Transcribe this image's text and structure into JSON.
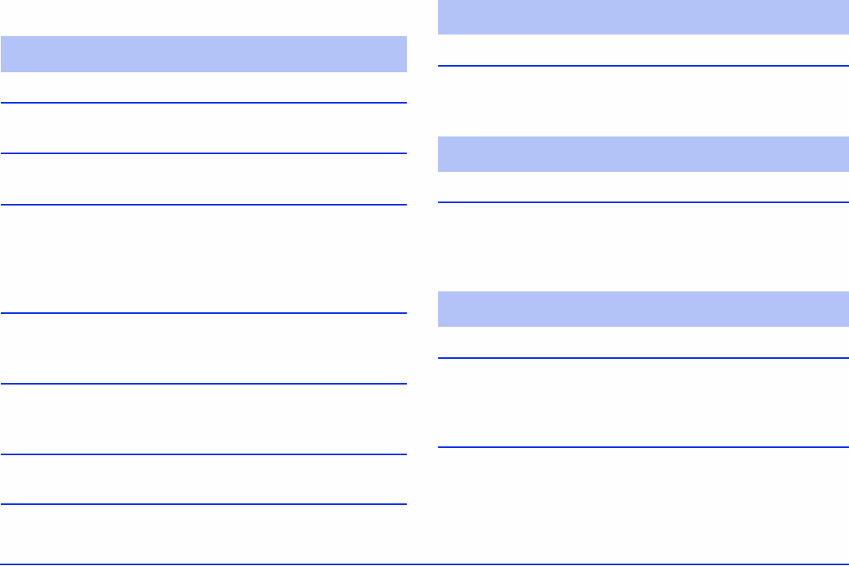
{
  "colors": {
    "table_header_fill": "#b3c3f7",
    "row_rule": "#0a32e6",
    "page_background": "#fefefe"
  },
  "left_table": {
    "header": "",
    "rows": [
      "",
      "",
      "",
      "",
      "",
      "",
      ""
    ]
  },
  "right_tables": [
    {
      "header": "",
      "rows": [
        ""
      ]
    },
    {
      "header": "",
      "rows": [
        ""
      ]
    },
    {
      "header": "",
      "rows": [
        "",
        ""
      ]
    }
  ]
}
